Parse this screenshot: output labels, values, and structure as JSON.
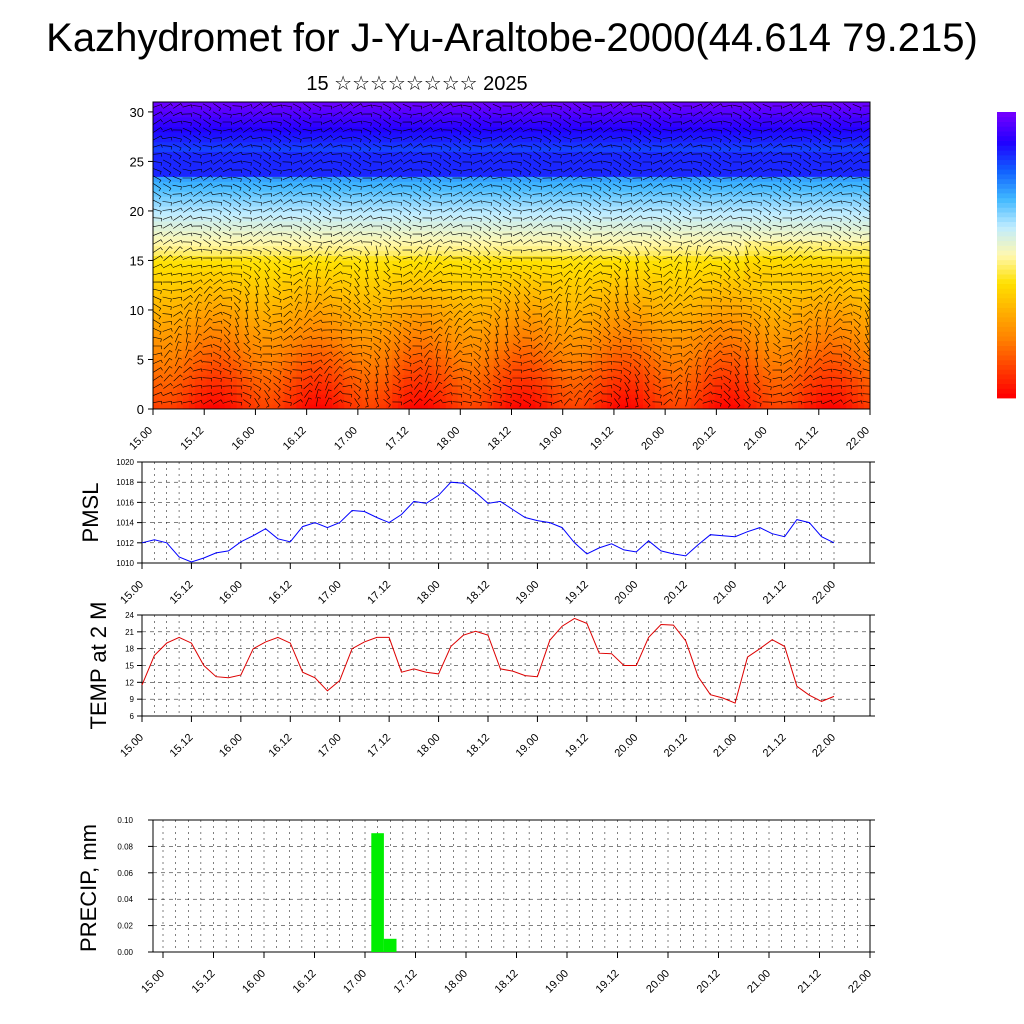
{
  "header": {
    "title": "Kazhydromet for J-Yu-Araltobe-2000(44.614 79.215)",
    "subtitle": "15 ☆☆☆☆☆☆☆☆ 2025"
  },
  "chart_data": [
    {
      "type": "heatmap",
      "name": "temperature-wind-cross-section",
      "x_tick_labels": [
        "15.00",
        "15.12",
        "16.00",
        "16.12",
        "17.00",
        "17.12",
        "18.00",
        "18.12",
        "19.00",
        "19.12",
        "20.00",
        "20.12",
        "21.00",
        "21.12",
        "22.00"
      ],
      "y_tick_labels": [
        "0",
        "5",
        "10",
        "15",
        "20",
        "25",
        "30"
      ],
      "ylim": [
        0,
        31
      ],
      "colorbar": {
        "colors": [
          "#ff0000",
          "#ff4000",
          "#ff8000",
          "#ffb000",
          "#ffe000",
          "#fff8b0",
          "#c0ecff",
          "#40b8ff",
          "#1060ff",
          "#2000ff",
          "#7000ff"
        ]
      },
      "overlay": "wind-barbs"
    },
    {
      "type": "line",
      "name": "pmsl",
      "ylabel": "PMSL",
      "ylim": [
        1010,
        1020
      ],
      "y_tick_labels": [
        "1010",
        "1012",
        "1014",
        "1016",
        "1018",
        "1020"
      ],
      "x_tick_labels": [
        "15.00",
        "15.12",
        "16.00",
        "16.12",
        "17.00",
        "17.12",
        "18.00",
        "18.12",
        "19.00",
        "19.12",
        "20.00",
        "20.12",
        "21.00",
        "21.12",
        "22.00"
      ],
      "x_step_hours": 3,
      "color": "#0000ff",
      "values": [
        1012.0,
        1012.3,
        1012.0,
        1010.6,
        1010.1,
        1010.5,
        1011.0,
        1011.2,
        1012.1,
        1012.7,
        1013.4,
        1012.4,
        1012.1,
        1013.6,
        1014.0,
        1013.5,
        1014.0,
        1015.2,
        1015.1,
        1014.5,
        1014.0,
        1014.8,
        1016.1,
        1015.9,
        1016.7,
        1018.0,
        1017.9,
        1017.0,
        1015.9,
        1016.1,
        1015.3,
        1014.5,
        1014.2,
        1014.0,
        1013.5,
        1012.0,
        1010.9,
        1011.5,
        1011.9,
        1011.3,
        1011.1,
        1012.2,
        1011.2,
        1010.9,
        1010.7,
        1011.8,
        1012.8,
        1012.7,
        1012.6,
        1013.1,
        1013.5,
        1012.9,
        1012.6,
        1014.3,
        1014.0,
        1012.6,
        1012.0
      ]
    },
    {
      "type": "line",
      "name": "temp-2m",
      "ylabel": "TEMP at 2 M",
      "ylim": [
        6,
        24
      ],
      "y_tick_labels": [
        "6",
        "9",
        "12",
        "15",
        "18",
        "21",
        "24"
      ],
      "x_tick_labels": [
        "15.00",
        "15.12",
        "16.00",
        "16.12",
        "17.00",
        "17.12",
        "18.00",
        "18.12",
        "19.00",
        "19.12",
        "20.00",
        "20.12",
        "21.00",
        "21.12",
        "22.00"
      ],
      "x_step_hours": 3,
      "color": "#dd0000",
      "values": [
        11.5,
        16.8,
        19.0,
        20.0,
        19.0,
        15.0,
        13.0,
        12.8,
        13.3,
        18.0,
        19.2,
        20.0,
        19.0,
        13.8,
        12.8,
        10.5,
        12.3,
        18.0,
        19.2,
        20.0,
        20.0,
        13.8,
        14.4,
        13.8,
        13.5,
        18.4,
        20.4,
        21.1,
        20.4,
        14.4,
        14.0,
        13.2,
        13.0,
        19.5,
        22.0,
        23.4,
        22.5,
        17.2,
        17.1,
        15.0,
        15.0,
        20.0,
        22.3,
        22.2,
        19.4,
        13.0,
        9.8,
        9.2,
        8.3,
        16.5,
        18.0,
        19.6,
        18.4,
        11.3,
        9.7,
        8.6,
        9.5
      ]
    },
    {
      "type": "bar",
      "name": "precip",
      "ylabel": "PRECIP, mm",
      "ylim": [
        0,
        0.1
      ],
      "y_tick_labels": [
        "0.00",
        "0.02",
        "0.04",
        "0.06",
        "0.08",
        "0.10"
      ],
      "x_tick_labels": [
        "15.00",
        "15.12",
        "16.00",
        "16.12",
        "17.00",
        "17.12",
        "18.00",
        "18.12",
        "19.00",
        "19.12",
        "20.00",
        "20.12",
        "21.00",
        "21.12",
        "22.00"
      ],
      "color": "#00ee00",
      "bars": [
        {
          "x": "17.03",
          "value": 0.09
        },
        {
          "x": "17.06",
          "value": 0.01
        }
      ]
    }
  ]
}
